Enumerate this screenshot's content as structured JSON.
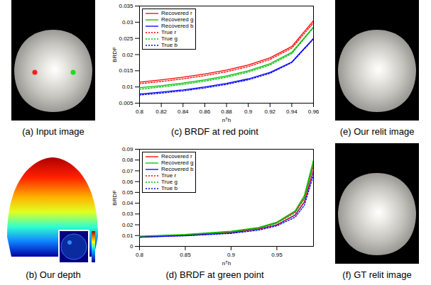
{
  "chart_data": [
    {
      "type": "line",
      "title": "(c) BRDF at red point",
      "x_label": "nᵀh",
      "y_label": "BRDF",
      "x": [
        0.8,
        0.82,
        0.84,
        0.86,
        0.88,
        0.9,
        0.92,
        0.94,
        0.96
      ],
      "xlim": [
        0.8,
        0.96
      ],
      "xticks": [
        0.8,
        0.82,
        0.84,
        0.86,
        0.88,
        0.9,
        0.92,
        0.94,
        0.96
      ],
      "ylim": [
        0.005,
        0.035
      ],
      "yticks": [
        0.005,
        0.01,
        0.015,
        0.02,
        0.025,
        0.03,
        0.035
      ],
      "legend": "upper left",
      "series": [
        {
          "name": "Recovered r",
          "color": "#ff0000",
          "line_style": "solid",
          "values": [
            0.0115,
            0.0122,
            0.013,
            0.014,
            0.0152,
            0.0168,
            0.019,
            0.0225,
            0.0305
          ]
        },
        {
          "name": "Recovered g",
          "color": "#00bf00",
          "line_style": "solid",
          "values": [
            0.0098,
            0.0104,
            0.0112,
            0.0122,
            0.0134,
            0.015,
            0.0172,
            0.0207,
            0.0285
          ]
        },
        {
          "name": "Recovered b",
          "color": "#0000ff",
          "line_style": "solid",
          "values": [
            0.0078,
            0.0084,
            0.0091,
            0.01,
            0.0111,
            0.0125,
            0.0145,
            0.0177,
            0.025
          ]
        },
        {
          "name": "True r",
          "color": "#ff0000",
          "line_style": "dotted",
          "values": [
            0.011,
            0.0117,
            0.0125,
            0.0135,
            0.0147,
            0.0163,
            0.0185,
            0.022,
            0.0298
          ]
        },
        {
          "name": "True g",
          "color": "#00bf00",
          "line_style": "dotted",
          "values": [
            0.0093,
            0.01,
            0.0108,
            0.0118,
            0.013,
            0.0146,
            0.0168,
            0.0203,
            0.0283
          ]
        },
        {
          "name": "True b",
          "color": "#0000ff",
          "line_style": "dotted",
          "values": [
            0.0075,
            0.0081,
            0.0088,
            0.0097,
            0.0108,
            0.0122,
            0.0142,
            0.0175,
            0.0248
          ]
        }
      ]
    },
    {
      "type": "line",
      "title": "(d) BRDF at green point",
      "x_label": "nᵀh",
      "y_label": "BRDF",
      "x": [
        0.8,
        0.85,
        0.9,
        0.93,
        0.95,
        0.97,
        0.98,
        0.99
      ],
      "xlim": [
        0.8,
        0.99
      ],
      "xticks": [
        0.8,
        0.85,
        0.9,
        0.95
      ],
      "ylim": [
        0,
        0.09
      ],
      "yticks": [
        0,
        0.01,
        0.02,
        0.03,
        0.04,
        0.05,
        0.06,
        0.07,
        0.08,
        0.09
      ],
      "legend": "upper left",
      "series": [
        {
          "name": "Recovered r",
          "color": "#ff0000",
          "line_style": "solid",
          "values": [
            0.009,
            0.0105,
            0.0135,
            0.017,
            0.022,
            0.032,
            0.045,
            0.075
          ]
        },
        {
          "name": "Recovered g",
          "color": "#00bf00",
          "line_style": "solid",
          "values": [
            0.0095,
            0.011,
            0.014,
            0.0175,
            0.0225,
            0.033,
            0.047,
            0.08
          ]
        },
        {
          "name": "Recovered b",
          "color": "#0000ff",
          "line_style": "solid",
          "values": [
            0.0085,
            0.01,
            0.0125,
            0.016,
            0.02,
            0.029,
            0.041,
            0.07
          ]
        },
        {
          "name": "True r",
          "color": "#ff0000",
          "line_style": "dotted",
          "values": [
            0.009,
            0.0103,
            0.013,
            0.016,
            0.02,
            0.029,
            0.041,
            0.07
          ]
        },
        {
          "name": "True g",
          "color": "#00bf00",
          "line_style": "dotted",
          "values": [
            0.0092,
            0.0106,
            0.0134,
            0.0168,
            0.0215,
            0.031,
            0.044,
            0.077
          ]
        },
        {
          "name": "True b",
          "color": "#0000ff",
          "line_style": "dotted",
          "values": [
            0.0085,
            0.0098,
            0.012,
            0.015,
            0.019,
            0.027,
            0.038,
            0.066
          ]
        }
      ]
    }
  ],
  "images": [
    {
      "caption": "(a) Input image"
    },
    {
      "caption": "(b) Our depth"
    },
    {
      "caption": "(e) Our relit image"
    },
    {
      "caption": "(f) GT relit image"
    }
  ]
}
